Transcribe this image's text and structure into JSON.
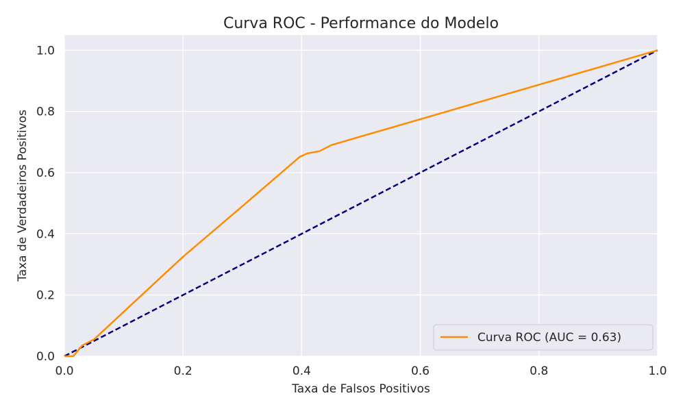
{
  "chart_data": {
    "type": "line",
    "title": "Curva ROC - Performance do Modelo",
    "xlabel": "Taxa de Falsos Positivos",
    "ylabel": "Taxa de Verdadeiros Positivos",
    "xlim": [
      0.0,
      1.0
    ],
    "ylim": [
      0.0,
      1.05
    ],
    "xticks": [
      0.0,
      0.2,
      0.4,
      0.6,
      0.8,
      1.0
    ],
    "yticks": [
      0.0,
      0.2,
      0.4,
      0.6,
      0.8,
      1.0
    ],
    "xtick_labels": [
      "0.0",
      "0.2",
      "0.4",
      "0.6",
      "0.8",
      "1.0"
    ],
    "ytick_labels": [
      "0.0",
      "0.2",
      "0.4",
      "0.6",
      "0.8",
      "1.0"
    ],
    "grid": true,
    "legend_position": "lower-right",
    "series": [
      {
        "name": "Curva ROC (AUC = 0.63)",
        "color": "#ff8c00",
        "style": "solid",
        "points": [
          [
            0.0,
            0.0
          ],
          [
            0.015,
            0.0
          ],
          [
            0.03,
            0.035
          ],
          [
            0.05,
            0.055
          ],
          [
            0.1,
            0.145
          ],
          [
            0.2,
            0.325
          ],
          [
            0.3,
            0.49
          ],
          [
            0.397,
            0.652
          ],
          [
            0.41,
            0.663
          ],
          [
            0.43,
            0.67
          ],
          [
            0.45,
            0.69
          ],
          [
            1.0,
            1.0
          ]
        ]
      },
      {
        "name": "",
        "color": "#000080",
        "style": "dashed",
        "points": [
          [
            0.0,
            0.0
          ],
          [
            1.0,
            1.0
          ]
        ]
      }
    ]
  },
  "colors": {
    "plot_background": "#eaeaf2",
    "grid": "#ffffff"
  }
}
